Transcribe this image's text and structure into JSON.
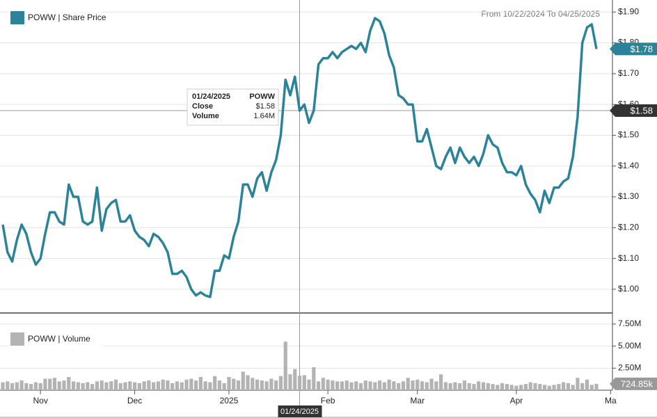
{
  "header": "From 10/22/2024 To 04/25/2025",
  "crosshair": {
    "date": "01/24/2025",
    "symbol": "POWW",
    "close_text": "Close",
    "close": 1.58,
    "close_label": "$1.58",
    "volume_text": "Volume",
    "volume": 1.64,
    "volume_label": "1.64M"
  },
  "chart_data": [
    {
      "type": "line",
      "series": [
        {
          "name": "POWW | Share Price",
          "color": "#2b8399",
          "values": [
            1.21,
            1.12,
            1.09,
            1.16,
            1.21,
            1.18,
            1.12,
            1.08,
            1.1,
            1.18,
            1.25,
            1.25,
            1.22,
            1.21,
            1.34,
            1.3,
            1.3,
            1.22,
            1.21,
            1.22,
            1.33,
            1.19,
            1.26,
            1.28,
            1.29,
            1.22,
            1.22,
            1.24,
            1.19,
            1.17,
            1.16,
            1.14,
            1.18,
            1.17,
            1.15,
            1.12,
            1.05,
            1.05,
            1.06,
            1.04,
            1.0,
            0.98,
            0.99,
            0.98,
            0.975,
            1.06,
            1.06,
            1.11,
            1.1,
            1.17,
            1.22,
            1.34,
            1.34,
            1.3,
            1.36,
            1.38,
            1.32,
            1.38,
            1.42,
            1.5,
            1.68,
            1.63,
            1.69,
            1.58,
            1.6,
            1.54,
            1.58,
            1.73,
            1.75,
            1.75,
            1.77,
            1.75,
            1.77,
            1.78,
            1.79,
            1.78,
            1.8,
            1.77,
            1.84,
            1.88,
            1.87,
            1.83,
            1.76,
            1.72,
            1.63,
            1.62,
            1.6,
            1.6,
            1.48,
            1.48,
            1.52,
            1.46,
            1.4,
            1.39,
            1.43,
            1.46,
            1.41,
            1.46,
            1.43,
            1.41,
            1.43,
            1.4,
            1.44,
            1.5,
            1.47,
            1.46,
            1.41,
            1.38,
            1.38,
            1.37,
            1.4,
            1.34,
            1.31,
            1.29,
            1.25,
            1.32,
            1.28,
            1.33,
            1.33,
            1.35,
            1.36,
            1.43,
            1.56,
            1.8,
            1.85,
            1.86,
            1.78
          ],
          "last_label": "$1.78"
        }
      ],
      "ylim": [
        0.923,
        1.93
      ],
      "yticks": [
        {
          "value": 1.9,
          "label": "$1.90"
        },
        {
          "value": 1.8,
          "label": "$1.80"
        },
        {
          "value": 1.7,
          "label": "$1.70"
        },
        {
          "value": 1.6,
          "label": "$1.60"
        },
        {
          "value": 1.5,
          "label": "$1.50"
        },
        {
          "value": 1.4,
          "label": "$1.40"
        },
        {
          "value": 1.3,
          "label": "$1.30"
        },
        {
          "value": 1.2,
          "label": "$1.20"
        },
        {
          "value": 1.1,
          "label": "$1.10"
        },
        {
          "value": 1.0,
          "label": "$1.00"
        }
      ],
      "grid": true,
      "legend": "top-left"
    },
    {
      "type": "bar",
      "series": [
        {
          "name": "POWW | Volume",
          "color": "#b3b3b3",
          "values": [
            0.9,
            1.0,
            0.8,
            0.9,
            1.1,
            0.8,
            0.7,
            0.9,
            0.8,
            1.3,
            1.3,
            1.4,
            1.0,
            1.1,
            1.5,
            1.0,
            0.9,
            0.8,
            0.9,
            0.7,
            1.0,
            1.1,
            0.9,
            1.0,
            1.2,
            0.8,
            0.9,
            1.0,
            0.9,
            0.8,
            1.0,
            1.1,
            0.9,
            1.0,
            1.2,
            1.1,
            0.8,
            1.0,
            0.9,
            1.2,
            1.3,
            1.1,
            1.5,
            1.0,
            0.9,
            1.6,
            1.1,
            0.8,
            1.5,
            1.3,
            1.1,
            2.1,
            1.7,
            1.4,
            1.2,
            1.1,
            1.0,
            1.3,
            1.1,
            1.6,
            5.5,
            1.8,
            2.4,
            1.64,
            1.7,
            1.2,
            2.6,
            1.0,
            1.4,
            1.2,
            1.1,
            1.0,
            1.0,
            1.1,
            0.9,
            1.0,
            0.8,
            1.1,
            1.0,
            0.9,
            1.1,
            0.9,
            1.2,
            1.0,
            0.8,
            1.0,
            1.4,
            1.1,
            1.2,
            1.0,
            0.9,
            1.3,
            1.0,
            1.8,
            0.9,
            0.8,
            0.9,
            0.8,
            1.1,
            0.8,
            0.7,
            1.0,
            0.9,
            0.8,
            0.7,
            0.6,
            0.8,
            0.7,
            0.6,
            0.5,
            0.6,
            0.7,
            0.9,
            0.8,
            0.7,
            0.6,
            0.5,
            0.6,
            0.7,
            0.9,
            0.8,
            0.6,
            1.4,
            0.8,
            1.2,
            0.6,
            0.72485
          ],
          "last_label": "724.85k"
        }
      ],
      "ylim": [
        0,
        8.6
      ],
      "yticks": [
        {
          "value": 7.5,
          "label": "7.50M"
        },
        {
          "value": 5,
          "label": "5.00M"
        },
        {
          "value": 2.5,
          "label": "2.50M"
        }
      ],
      "grid": true,
      "legend": "top-left",
      "xlim": [
        0,
        126
      ],
      "xticks": [
        {
          "value": 8,
          "label": "Nov"
        },
        {
          "value": 28,
          "label": "Dec"
        },
        {
          "value": 48,
          "label": "2025"
        },
        {
          "value": 69,
          "label": "Feb"
        },
        {
          "value": 88,
          "label": "Mar"
        },
        {
          "value": 109,
          "label": "Apr"
        },
        {
          "value": 129,
          "label": "Ma"
        }
      ]
    }
  ]
}
